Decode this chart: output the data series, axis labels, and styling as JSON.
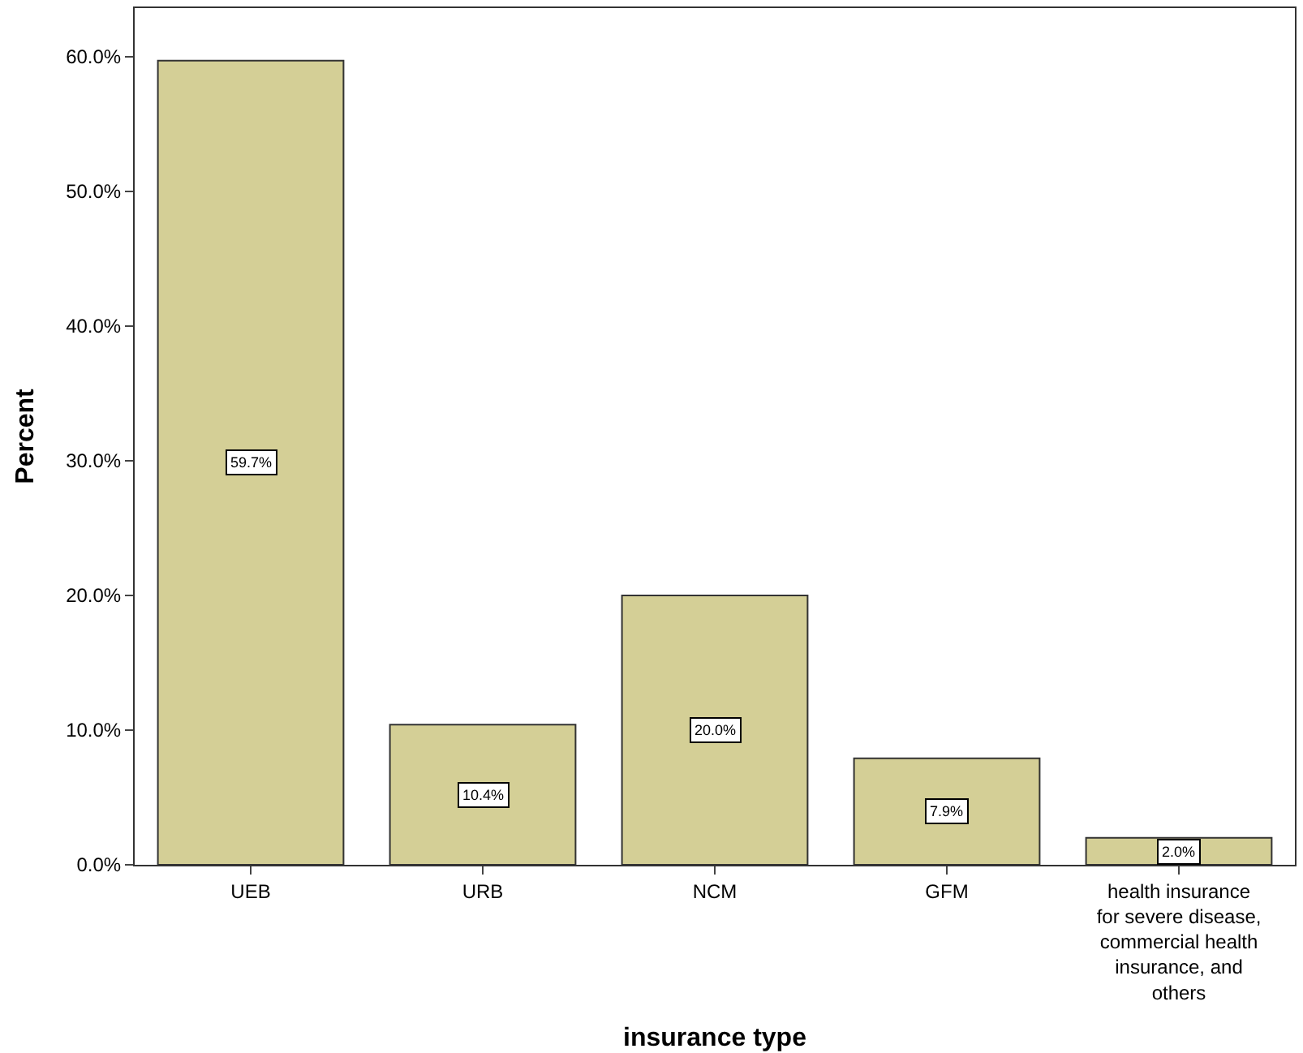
{
  "chart_data": {
    "type": "bar",
    "xlabel": "insurance type",
    "ylabel": "Percent",
    "categories": [
      "UEB",
      "URB",
      "NCM",
      "GFM",
      "health insurance for severe disease, commercial health insurance, and others"
    ],
    "values": [
      59.7,
      10.4,
      20.0,
      7.9,
      2.0
    ],
    "value_labels": [
      "59.7%",
      "10.4%",
      "20.0%",
      "7.9%",
      "2.0%"
    ],
    "color": "#d4cf96",
    "ylim": [
      0,
      63.6
    ],
    "yticks": [
      {
        "value": 0,
        "label": "0.0%"
      },
      {
        "value": 10,
        "label": "10.0%"
      },
      {
        "value": 20,
        "label": "20.0%"
      },
      {
        "value": 30,
        "label": "30.0%"
      },
      {
        "value": 40,
        "label": "40.0%"
      },
      {
        "value": 50,
        "label": "50.0%"
      },
      {
        "value": 60,
        "label": "60.0%"
      }
    ]
  }
}
